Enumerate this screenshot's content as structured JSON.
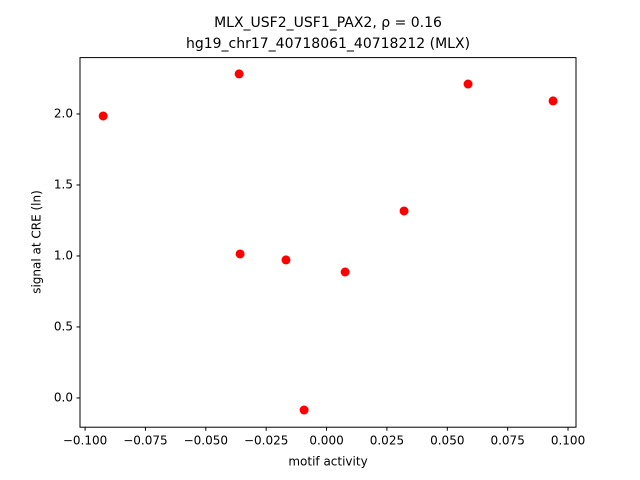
{
  "chart_data": {
    "type": "scatter",
    "title": "MLX_USF2_USF1_PAX2, ρ = 0.16",
    "subtitle": "hg19_chr17_40718061_40718212 (MLX)",
    "x_label": "motif activity",
    "y_label": "signal at CRE (ln)",
    "color": "#ff0000",
    "series": [
      {
        "x": [
          -0.0925,
          -0.0362,
          -0.0358,
          -0.0168,
          -0.0093,
          0.0077,
          0.0321,
          0.0586,
          0.0938
        ],
        "values": [
          1.986,
          2.282,
          1.014,
          0.972,
          -0.085,
          0.887,
          1.317,
          2.211,
          2.092
        ]
      }
    ],
    "xlim": [
      -0.1021,
      0.1033
    ],
    "ylim": [
      -0.206,
      2.397
    ],
    "xticks": [
      {
        "value": -0.1,
        "label": "−0.100"
      },
      {
        "value": -0.075,
        "label": "−0.075"
      },
      {
        "value": -0.05,
        "label": "−0.050"
      },
      {
        "value": -0.025,
        "label": "−0.025"
      },
      {
        "value": 0,
        "label": "0.000"
      },
      {
        "value": 0.025,
        "label": "0.025"
      },
      {
        "value": 0.05,
        "label": "0.050"
      },
      {
        "value": 0.075,
        "label": "0.075"
      },
      {
        "value": 0.1,
        "label": "0.100"
      }
    ],
    "yticks": [
      {
        "value": 0,
        "label": "0.0"
      },
      0.5,
      {
        "value": 1,
        "label": "1.0"
      },
      1.5,
      {
        "value": 2,
        "label": "2.0"
      }
    ]
  }
}
